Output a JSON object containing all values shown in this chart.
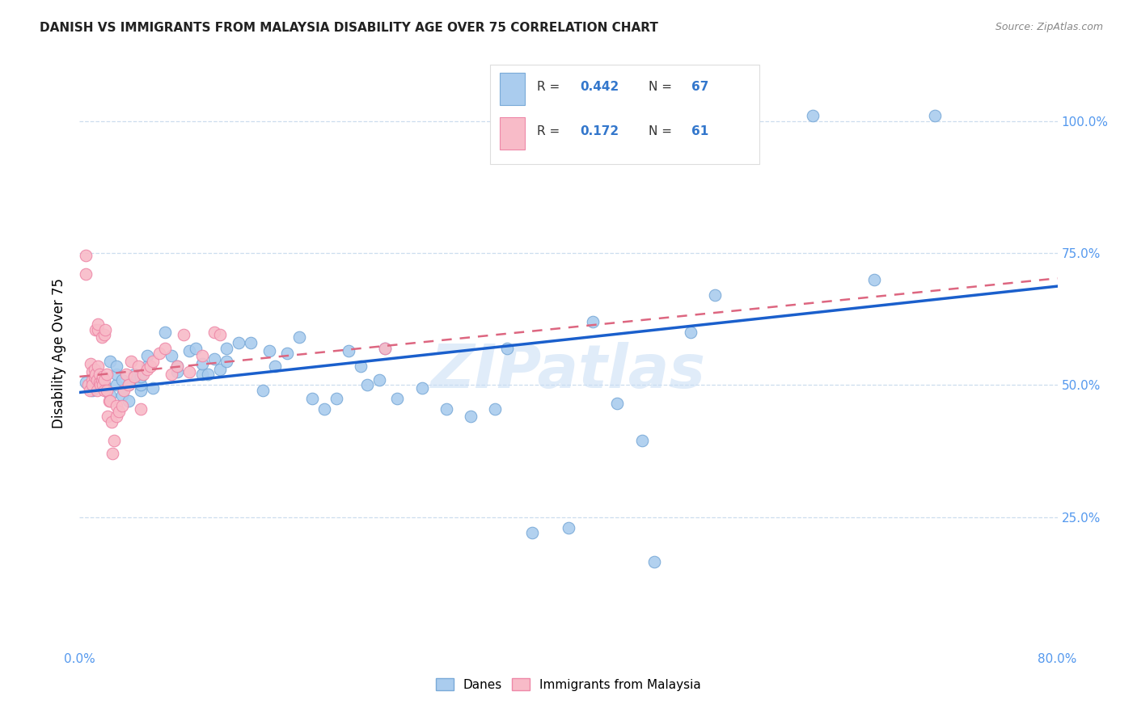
{
  "title": "DANISH VS IMMIGRANTS FROM MALAYSIA DISABILITY AGE OVER 75 CORRELATION CHART",
  "source": "Source: ZipAtlas.com",
  "ylabel": "Disability Age Over 75",
  "x_min": 0.0,
  "x_max": 0.8,
  "y_min": 0.0,
  "y_max": 1.12,
  "x_ticks": [
    0.0,
    0.1,
    0.2,
    0.3,
    0.4,
    0.5,
    0.6,
    0.7,
    0.8
  ],
  "x_tick_labels": [
    "0.0%",
    "",
    "",
    "",
    "",
    "",
    "",
    "",
    "80.0%"
  ],
  "y_ticks": [
    0.25,
    0.5,
    0.75,
    1.0
  ],
  "y_tick_labels": [
    "25.0%",
    "50.0%",
    "75.0%",
    "100.0%"
  ],
  "danes_color": "#aaccee",
  "danes_edge_color": "#7aaad8",
  "immigrants_color": "#f8bbc8",
  "immigrants_edge_color": "#ee88a8",
  "trend_blue": "#1a5fcc",
  "trend_pink": "#dd6680",
  "watermark": "ZIPatlas",
  "danes_x": [
    0.005,
    0.01,
    0.015,
    0.02,
    0.025,
    0.025,
    0.03,
    0.03,
    0.03,
    0.035,
    0.035,
    0.04,
    0.04,
    0.045,
    0.045,
    0.05,
    0.05,
    0.05,
    0.055,
    0.055,
    0.06,
    0.07,
    0.075,
    0.08,
    0.08,
    0.09,
    0.095,
    0.1,
    0.1,
    0.105,
    0.11,
    0.115,
    0.12,
    0.12,
    0.13,
    0.14,
    0.15,
    0.155,
    0.16,
    0.17,
    0.18,
    0.19,
    0.2,
    0.21,
    0.22,
    0.23,
    0.235,
    0.245,
    0.25,
    0.26,
    0.28,
    0.3,
    0.32,
    0.34,
    0.35,
    0.37,
    0.4,
    0.42,
    0.44,
    0.46,
    0.47,
    0.5,
    0.52,
    0.55,
    0.6,
    0.65,
    0.7
  ],
  "danes_y": [
    0.505,
    0.49,
    0.52,
    0.5,
    0.48,
    0.545,
    0.5,
    0.52,
    0.535,
    0.48,
    0.51,
    0.47,
    0.5,
    0.515,
    0.52,
    0.49,
    0.5,
    0.515,
    0.535,
    0.555,
    0.495,
    0.6,
    0.555,
    0.525,
    0.535,
    0.565,
    0.57,
    0.52,
    0.54,
    0.52,
    0.55,
    0.53,
    0.545,
    0.57,
    0.58,
    0.58,
    0.49,
    0.565,
    0.535,
    0.56,
    0.59,
    0.475,
    0.455,
    0.475,
    0.565,
    0.535,
    0.5,
    0.51,
    0.57,
    0.475,
    0.495,
    0.455,
    0.44,
    0.455,
    0.57,
    0.22,
    0.23,
    0.62,
    0.465,
    0.395,
    0.165,
    0.6,
    0.67,
    1.01,
    1.01,
    0.7,
    1.01
  ],
  "immigrants_x": [
    0.005,
    0.005,
    0.007,
    0.008,
    0.009,
    0.01,
    0.01,
    0.01,
    0.012,
    0.012,
    0.013,
    0.013,
    0.014,
    0.014,
    0.015,
    0.015,
    0.015,
    0.016,
    0.016,
    0.017,
    0.018,
    0.018,
    0.019,
    0.019,
    0.02,
    0.02,
    0.02,
    0.021,
    0.022,
    0.022,
    0.023,
    0.024,
    0.025,
    0.026,
    0.027,
    0.028,
    0.03,
    0.03,
    0.032,
    0.035,
    0.036,
    0.038,
    0.04,
    0.042,
    0.045,
    0.048,
    0.05,
    0.052,
    0.055,
    0.058,
    0.06,
    0.065,
    0.07,
    0.075,
    0.08,
    0.085,
    0.09,
    0.1,
    0.11,
    0.115,
    0.25
  ],
  "immigrants_y": [
    0.745,
    0.71,
    0.5,
    0.49,
    0.54,
    0.51,
    0.525,
    0.5,
    0.515,
    0.53,
    0.605,
    0.52,
    0.49,
    0.51,
    0.605,
    0.615,
    0.535,
    0.505,
    0.52,
    0.5,
    0.59,
    0.51,
    0.515,
    0.5,
    0.595,
    0.51,
    0.49,
    0.605,
    0.49,
    0.52,
    0.44,
    0.47,
    0.47,
    0.43,
    0.37,
    0.395,
    0.44,
    0.46,
    0.45,
    0.46,
    0.49,
    0.52,
    0.5,
    0.545,
    0.515,
    0.535,
    0.455,
    0.52,
    0.53,
    0.535,
    0.545,
    0.56,
    0.57,
    0.52,
    0.535,
    0.595,
    0.525,
    0.555,
    0.6,
    0.595,
    0.57
  ]
}
